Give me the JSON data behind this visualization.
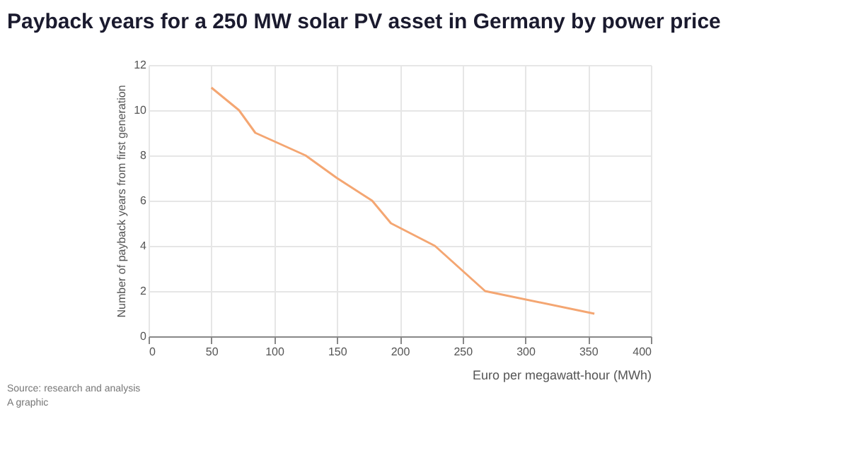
{
  "chart_data": {
    "type": "line",
    "title": "Payback years for a 250 MW solar PV asset in Germany by power price",
    "xlabel": "Euro per megawatt-hour (MWh)",
    "ylabel": "Number of payback years from first generation",
    "x": [
      50,
      72,
      85,
      125,
      150,
      178,
      193,
      228,
      268,
      355
    ],
    "series": [
      {
        "color": "#f4a672",
        "values": [
          11,
          10,
          9,
          8,
          7,
          6,
          5,
          4,
          2,
          1
        ]
      }
    ],
    "xlim": [
      0,
      400
    ],
    "xticks": [
      0,
      50,
      100,
      150,
      200,
      250,
      300,
      350,
      400
    ],
    "ylim": [
      0,
      12
    ],
    "yticks": [
      0,
      2,
      4,
      6,
      8,
      10,
      12
    ],
    "grid": true,
    "marker": "none",
    "line_style": "solid",
    "annotations": [
      "Source: research and analysis",
      "A graphic"
    ]
  }
}
